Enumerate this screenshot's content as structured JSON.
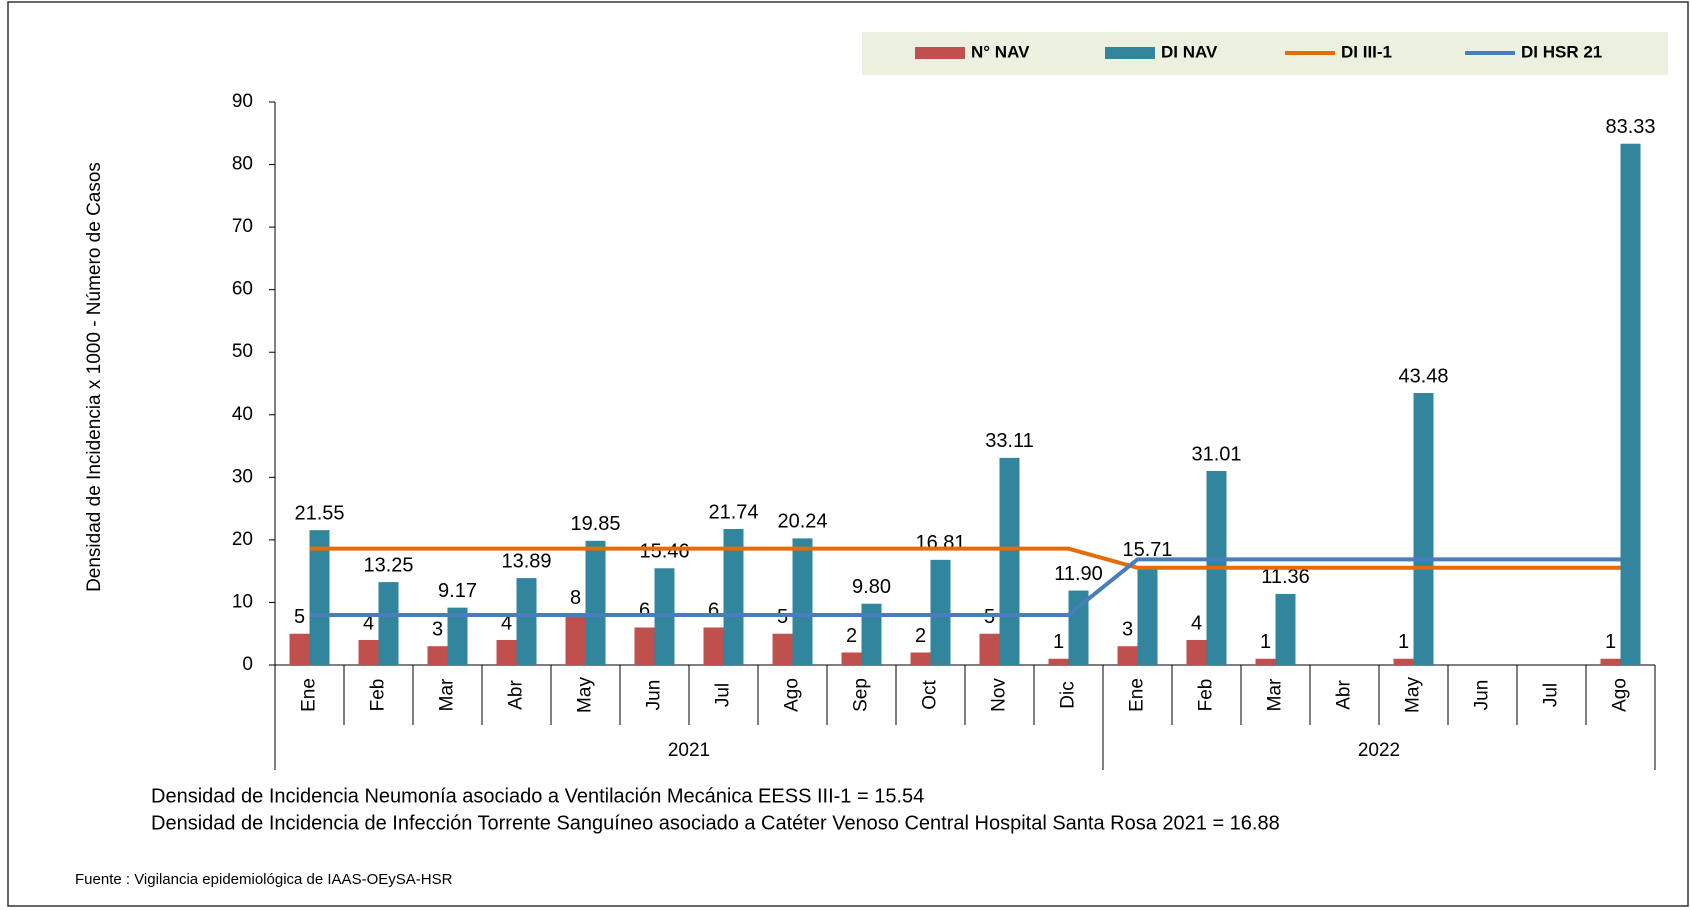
{
  "chart_data": {
    "type": "bar",
    "y_axis_label": "Densidad de Incidencia x 1000 - Número de Casos",
    "categories": [
      "Ene",
      "Feb",
      "Mar",
      "Abr",
      "May",
      "Jun",
      "Jul",
      "Ago",
      "Sep",
      "Oct",
      "Nov",
      "Dic",
      "Ene",
      "Feb",
      "Mar",
      "Abr",
      "May",
      "Jun",
      "Jul",
      "Ago"
    ],
    "groups": [
      {
        "label": "2021",
        "span": 12
      },
      {
        "label": "2022",
        "span": 8
      }
    ],
    "series": [
      {
        "name": "N° NAV",
        "type": "bar",
        "color": "#c0504d",
        "values": [
          5,
          4,
          3,
          4,
          8,
          6,
          6,
          5,
          2,
          2,
          5,
          1,
          3,
          4,
          1,
          null,
          1,
          null,
          null,
          1
        ]
      },
      {
        "name": "DI NAV",
        "type": "bar",
        "color": "#31859c",
        "values": [
          21.55,
          13.25,
          9.17,
          13.89,
          19.85,
          15.46,
          21.74,
          20.24,
          9.8,
          16.81,
          33.11,
          11.9,
          15.71,
          31.01,
          11.36,
          null,
          43.48,
          null,
          null,
          83.33
        ],
        "value_labels": [
          "21.55",
          "13.25",
          "9.17",
          "13.89",
          "19.85",
          "15.46",
          "21.74",
          "20.24",
          "9.80",
          "16.81",
          "33.11",
          "11.90",
          "15.71",
          "31.01",
          "11.36",
          null,
          "43.48",
          null,
          null,
          "83.33"
        ]
      },
      {
        "name": "DI III-1",
        "type": "line",
        "color": "#e46c0a",
        "values": [
          18.6,
          18.6,
          18.6,
          18.6,
          18.6,
          18.6,
          18.6,
          18.6,
          18.6,
          18.6,
          18.6,
          18.6,
          15.54,
          15.54,
          15.54,
          15.54,
          15.54,
          15.54,
          15.54,
          15.54
        ]
      },
      {
        "name": "DI HSR 21",
        "type": "line",
        "color": "#4a7ebb",
        "values": [
          8,
          8,
          8,
          8,
          8,
          8,
          8,
          8,
          8,
          8,
          8,
          8,
          16.88,
          16.88,
          16.88,
          16.88,
          16.88,
          16.88,
          16.88,
          16.88
        ]
      }
    ],
    "ylim": [
      0,
      90
    ],
    "yticks": [
      0,
      10,
      20,
      30,
      40,
      50,
      60,
      70,
      80,
      90
    ],
    "notes": [
      "Densidad de Incidencia Neumonía asociado a Ventilación Mecánica EESS III-1 = 15.54",
      "Densidad de Incidencia de Infección Torrente Sanguíneo asociado a Catéter Venoso Central Hospital Santa Rosa 2021 = 16.88"
    ],
    "source": "Fuente : Vigilancia epidemiológica de IAAS-OEySA-HSR"
  }
}
